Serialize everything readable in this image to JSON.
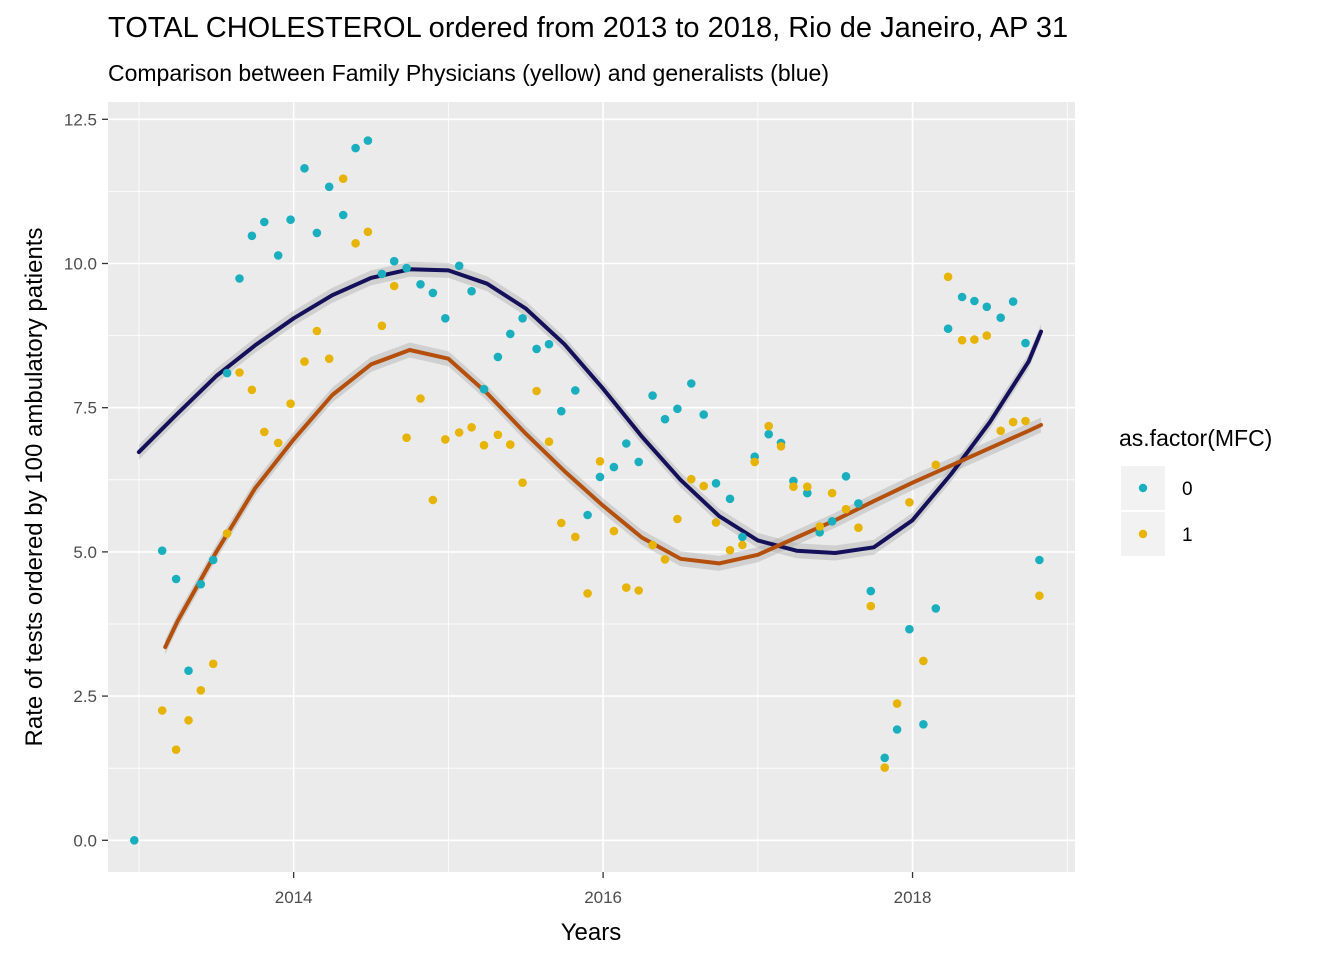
{
  "chart_data": {
    "type": "scatter",
    "title": "TOTAL CHOLESTEROL ordered from 2013 to 2018, Rio de Janeiro, AP 31",
    "subtitle": "Comparison between Family Physicians (yellow) and generalists (blue)",
    "xlabel": "Years",
    "ylabel": "Rate of tests ordered by 100 ambulatory patients",
    "xlim": [
      2012.8,
      2019.05
    ],
    "ylim": [
      -0.55,
      12.8
    ],
    "x_ticks": [
      {
        "value": 2014,
        "label": "2014"
      },
      {
        "value": 2016,
        "label": "2016"
      },
      {
        "value": 2018,
        "label": "2018"
      }
    ],
    "y_ticks": [
      {
        "value": 0,
        "label": "0.0"
      },
      {
        "value": 2.5,
        "label": "2.5"
      },
      {
        "value": 5,
        "label": "5.0"
      },
      {
        "value": 7.5,
        "label": "7.5"
      },
      {
        "value": 10,
        "label": "10.0"
      },
      {
        "value": 12.5,
        "label": "12.5"
      }
    ],
    "grid": true,
    "legend": {
      "title": "as.factor(MFC)",
      "position": "right",
      "entries": [
        {
          "label": "0",
          "color": "#1aafbe"
        },
        {
          "label": "1",
          "color": "#e7b400"
        }
      ]
    },
    "series": [
      {
        "name": "0",
        "color": "#1aafbe",
        "x": [
          2012.97,
          2013.15,
          2013.24,
          2013.32,
          2013.4,
          2013.48,
          2013.57,
          2013.65,
          2013.73,
          2013.81,
          2013.9,
          2013.98,
          2014.07,
          2014.15,
          2014.23,
          2014.32,
          2014.4,
          2014.48,
          2014.57,
          2014.65,
          2014.73,
          2014.82,
          2014.9,
          2014.98,
          2015.07,
          2015.15,
          2015.23,
          2015.32,
          2015.4,
          2015.48,
          2015.57,
          2015.65,
          2015.73,
          2015.82,
          2015.9,
          2015.98,
          2016.07,
          2016.15,
          2016.23,
          2016.32,
          2016.4,
          2016.48,
          2016.57,
          2016.65,
          2016.73,
          2016.82,
          2016.9,
          2016.98,
          2017.07,
          2017.15,
          2017.23,
          2017.32,
          2017.4,
          2017.48,
          2017.57,
          2017.65,
          2017.73,
          2017.82,
          2017.9,
          2017.98,
          2018.07,
          2018.15,
          2018.23,
          2018.32,
          2018.4,
          2018.48,
          2018.57,
          2018.65,
          2018.73,
          2018.82
        ],
        "y": [
          0.0,
          5.02,
          4.53,
          2.94,
          4.44,
          4.86,
          8.1,
          9.74,
          10.48,
          10.72,
          10.14,
          10.76,
          11.65,
          10.53,
          11.33,
          10.84,
          12.0,
          12.13,
          9.82,
          10.04,
          9.92,
          9.64,
          9.49,
          9.05,
          9.96,
          9.52,
          7.82,
          8.38,
          8.78,
          9.05,
          8.52,
          8.6,
          7.44,
          7.8,
          5.64,
          6.3,
          6.47,
          6.88,
          6.56,
          7.71,
          7.3,
          7.48,
          7.92,
          7.38,
          6.19,
          5.92,
          5.26,
          6.65,
          7.04,
          6.89,
          6.23,
          6.02,
          5.34,
          5.53,
          6.31,
          5.84,
          4.32,
          1.43,
          1.92,
          3.66,
          2.01,
          4.02,
          8.87,
          9.42,
          9.35,
          9.25,
          9.06,
          9.34,
          8.62,
          4.86
        ]
      },
      {
        "name": "1",
        "color": "#e7b400",
        "x": [
          2013.15,
          2013.24,
          2013.32,
          2013.4,
          2013.48,
          2013.57,
          2013.65,
          2013.73,
          2013.81,
          2013.9,
          2013.98,
          2014.07,
          2014.15,
          2014.23,
          2014.32,
          2014.4,
          2014.48,
          2014.57,
          2014.65,
          2014.73,
          2014.82,
          2014.9,
          2014.98,
          2015.07,
          2015.15,
          2015.23,
          2015.32,
          2015.4,
          2015.48,
          2015.57,
          2015.65,
          2015.73,
          2015.82,
          2015.9,
          2015.98,
          2016.07,
          2016.15,
          2016.23,
          2016.32,
          2016.4,
          2016.48,
          2016.57,
          2016.65,
          2016.73,
          2016.82,
          2016.9,
          2016.98,
          2017.07,
          2017.15,
          2017.23,
          2017.32,
          2017.4,
          2017.48,
          2017.57,
          2017.65,
          2017.73,
          2017.82,
          2017.9,
          2017.98,
          2018.07,
          2018.15,
          2018.23,
          2018.32,
          2018.4,
          2018.48,
          2018.57,
          2018.65,
          2018.73,
          2018.82
        ],
        "y": [
          2.25,
          1.57,
          2.08,
          2.6,
          3.06,
          5.32,
          8.11,
          7.81,
          7.08,
          6.89,
          7.57,
          8.3,
          8.83,
          8.35,
          11.47,
          10.35,
          10.55,
          8.92,
          9.61,
          6.98,
          7.66,
          5.9,
          6.95,
          7.07,
          7.16,
          6.85,
          7.03,
          6.86,
          6.2,
          7.79,
          6.91,
          5.5,
          5.26,
          4.28,
          6.57,
          5.36,
          4.38,
          4.33,
          5.12,
          4.87,
          5.57,
          6.26,
          6.14,
          5.51,
          5.03,
          5.12,
          6.56,
          7.18,
          6.83,
          6.13,
          6.13,
          5.44,
          6.02,
          5.74,
          5.42,
          4.06,
          1.26,
          2.37,
          5.86,
          3.11,
          6.51,
          9.77,
          8.67,
          8.68,
          8.75,
          7.1,
          7.25,
          7.27,
          4.24
        ]
      }
    ],
    "smooth": [
      {
        "name": "0",
        "color": "#14105a",
        "x": [
          2013.0,
          2013.25,
          2013.5,
          2013.75,
          2014.0,
          2014.25,
          2014.5,
          2014.75,
          2015.0,
          2015.25,
          2015.5,
          2015.75,
          2016.0,
          2016.25,
          2016.5,
          2016.75,
          2017.0,
          2017.25,
          2017.5,
          2017.75,
          2018.0,
          2018.25,
          2018.5,
          2018.75,
          2018.83
        ],
        "y": [
          6.73,
          7.4,
          8.05,
          8.58,
          9.05,
          9.45,
          9.75,
          9.9,
          9.88,
          9.65,
          9.22,
          8.6,
          7.83,
          7.0,
          6.25,
          5.62,
          5.2,
          5.02,
          4.98,
          5.08,
          5.55,
          6.35,
          7.25,
          8.3,
          8.82
        ]
      },
      {
        "name": "1",
        "color": "#b5500c",
        "x": [
          2013.17,
          2013.25,
          2013.5,
          2013.75,
          2014.0,
          2014.25,
          2014.5,
          2014.75,
          2015.0,
          2015.25,
          2015.5,
          2015.75,
          2016.0,
          2016.25,
          2016.5,
          2016.75,
          2017.0,
          2017.25,
          2017.5,
          2017.75,
          2018.0,
          2018.25,
          2018.5,
          2018.75,
          2018.83
        ],
        "y": [
          3.35,
          3.8,
          5.0,
          6.1,
          6.95,
          7.72,
          8.25,
          8.5,
          8.35,
          7.75,
          7.05,
          6.4,
          5.8,
          5.25,
          4.88,
          4.8,
          4.95,
          5.25,
          5.55,
          5.88,
          6.2,
          6.5,
          6.8,
          7.1,
          7.2
        ]
      }
    ]
  }
}
